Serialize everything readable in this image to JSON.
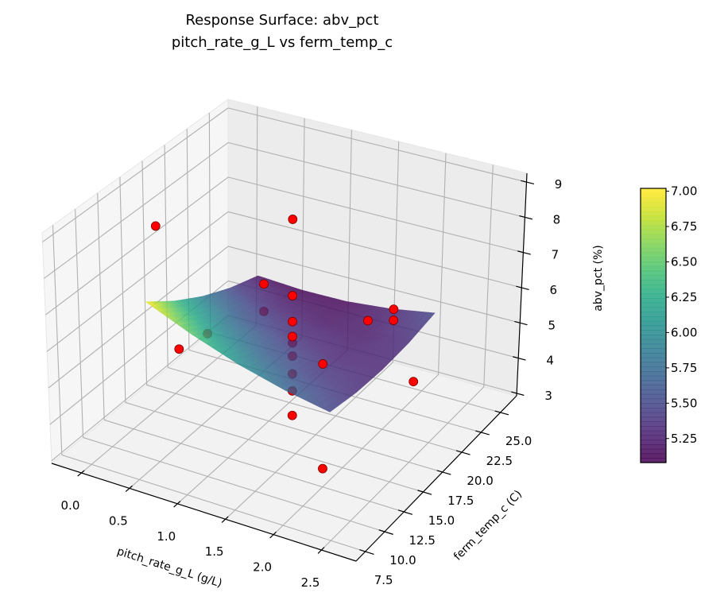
{
  "chart_data": {
    "type": "surface3d",
    "title": "Response Surface: abv_pct",
    "subtitle": "pitch_rate_g_L vs ferm_temp_c",
    "xlabel": "pitch_rate_g_L (g/L)",
    "ylabel": "ferm_temp_c (C)",
    "zlabel": "abv_pct (%)",
    "xlim": [
      -0.31,
      2.86
    ],
    "ylim": [
      6.3,
      27.1
    ],
    "zlim": [
      2.93,
      9.25
    ],
    "xticks": [
      "0.0",
      "0.5",
      "1.0",
      "1.5",
      "2.0",
      "2.5"
    ],
    "yticks": [
      "7.5",
      "10.0",
      "12.5",
      "15.0",
      "17.5",
      "20.0",
      "22.5",
      "25.0"
    ],
    "zticks": [
      "3",
      "4",
      "5",
      "6",
      "7",
      "8",
      "9"
    ],
    "grid": true,
    "colorbar": {
      "colormap": "viridis",
      "range": [
        5.08,
        7.02
      ],
      "ticks": [
        "5.25",
        "5.50",
        "5.75",
        "6.00",
        "6.25",
        "6.50",
        "6.75",
        "7.00"
      ]
    },
    "surface": {
      "x": [
        0.3,
        0.775,
        1.25,
        1.725,
        2.2
      ],
      "y": [
        11.0,
        14.25,
        17.5,
        20.75,
        24.0
      ],
      "z": [
        [
          7.0,
          6.48,
          6.05,
          5.73,
          5.5
        ],
        [
          6.4,
          5.99,
          5.68,
          5.46,
          5.35
        ],
        [
          5.9,
          5.6,
          5.4,
          5.3,
          5.3
        ],
        [
          5.5,
          5.31,
          5.23,
          5.24,
          5.35
        ],
        [
          5.2,
          5.13,
          5.15,
          5.28,
          5.5
        ]
      ]
    },
    "point_color": "#ff0000",
    "points": [
      {
        "x": 1.25,
        "y": 17.5,
        "z": 8.8
      },
      {
        "x": 1.25,
        "y": 17.5,
        "z": 6.65
      },
      {
        "x": 1.25,
        "y": 17.5,
        "z": 5.92
      },
      {
        "x": 1.25,
        "y": 17.5,
        "z": 5.5
      },
      {
        "x": 1.25,
        "y": 17.5,
        "z": 5.32
      },
      {
        "x": 1.25,
        "y": 17.5,
        "z": 4.95
      },
      {
        "x": 1.25,
        "y": 17.5,
        "z": 4.45
      },
      {
        "x": 1.25,
        "y": 17.5,
        "z": 3.97
      },
      {
        "x": 1.25,
        "y": 17.5,
        "z": 3.28
      },
      {
        "x": 0.05,
        "y": 15.0,
        "z": 8.16
      },
      {
        "x": 0.5,
        "y": 12.5,
        "z": 5.56
      },
      {
        "x": 0.35,
        "y": 17.5,
        "z": 4.89
      },
      {
        "x": 0.5,
        "y": 22.5,
        "z": 5.41
      },
      {
        "x": 0.5,
        "y": 22.5,
        "z": 4.63
      },
      {
        "x": 2.0,
        "y": 12.5,
        "z": 6.36
      },
      {
        "x": 2.0,
        "y": 12.5,
        "z": 3.44
      },
      {
        "x": 2.31,
        "y": 17.5,
        "z": 7.08
      },
      {
        "x": 2.31,
        "y": 17.5,
        "z": 6.77
      },
      {
        "x": 1.4,
        "y": 25.0,
        "z": 4.5
      },
      {
        "x": 2.2,
        "y": 21.5,
        "z": 4.1
      }
    ]
  }
}
